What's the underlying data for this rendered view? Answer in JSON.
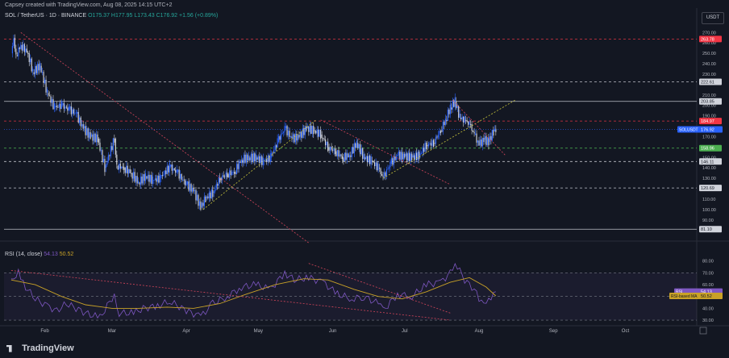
{
  "credit": "Capsey created with TradingView.com, Aug 08, 2025 14:15 UTC+2",
  "currency": "USDT",
  "legend": {
    "symbol": "SOL / TetherUS · 1D · BINANCE",
    "open": "O175.37",
    "high": "H177.95",
    "low": "L173.43",
    "close": "C176.92",
    "change": "+1.56 (+0.89%)"
  },
  "rsi_legend": {
    "label": "RSI (14, close)",
    "value": "54.13",
    "ma_value": "50.52"
  },
  "brand": "TradingView",
  "colors": {
    "background": "#131722",
    "up": "#2962ff",
    "down": "#d1d4dc",
    "rsi": "#7e57c2",
    "rsi_ma": "#c9a227",
    "resistance": "#f23645",
    "support": "#4caf50",
    "trend_yellow": "#c9c53b",
    "trend_red": "#d3455a"
  },
  "chart_data": {
    "type": "candlestick",
    "symbol": "SOL / TetherUS",
    "timeframe": "1D",
    "ylim": [
      72,
      278
    ],
    "price_ticks": [
      270,
      260,
      250,
      240,
      230,
      210,
      200,
      190,
      170,
      150,
      140,
      130,
      110,
      100,
      90,
      80,
      70
    ],
    "x_labels": [
      "Feb",
      "Mar",
      "Apr",
      "May",
      "Jun",
      "Jul",
      "Aug",
      "Sep",
      "Oct"
    ],
    "levels": [
      {
        "price": "263.78",
        "value": 263.78,
        "color": "red"
      },
      {
        "price": "222.61",
        "value": 222.61,
        "color": "white"
      },
      {
        "price": "203.85",
        "value": 203.85,
        "color": "white"
      },
      {
        "price": "184.97",
        "value": 184.97,
        "color": "red"
      },
      {
        "price": "158.96",
        "value": 158.96,
        "color": "green"
      },
      {
        "price": "146.11",
        "value": 146.11,
        "color": "white"
      },
      {
        "price": "120.69",
        "value": 120.69,
        "color": "white"
      },
      {
        "price": "81.10",
        "value": 81.1,
        "color": "white"
      }
    ],
    "last_price": {
      "label": "SOLUSDT",
      "value": 176.92,
      "text": "176.92"
    },
    "close_path": [
      [
        "2025-01-18",
        250
      ],
      [
        "2025-01-19",
        265
      ],
      [
        "2025-01-20",
        248
      ],
      [
        "2025-01-22",
        258
      ],
      [
        "2025-01-25",
        250
      ],
      [
        "2025-01-27",
        232
      ],
      [
        "2025-01-30",
        238
      ],
      [
        "2025-02-02",
        212
      ],
      [
        "2025-02-05",
        198
      ],
      [
        "2025-02-08",
        200
      ],
      [
        "2025-02-11",
        196
      ],
      [
        "2025-02-14",
        192
      ],
      [
        "2025-02-17",
        178
      ],
      [
        "2025-02-20",
        170
      ],
      [
        "2025-02-23",
        168
      ],
      [
        "2025-02-26",
        140
      ],
      [
        "2025-03-02",
        168
      ],
      [
        "2025-03-03",
        142
      ],
      [
        "2025-03-06",
        140
      ],
      [
        "2025-03-09",
        135
      ],
      [
        "2025-03-12",
        126
      ],
      [
        "2025-03-15",
        132
      ],
      [
        "2025-03-18",
        128
      ],
      [
        "2025-03-21",
        130
      ],
      [
        "2025-03-25",
        141
      ],
      [
        "2025-03-28",
        136
      ],
      [
        "2025-04-01",
        124
      ],
      [
        "2025-04-04",
        118
      ],
      [
        "2025-04-07",
        102
      ],
      [
        "2025-04-09",
        111
      ],
      [
        "2025-04-12",
        116
      ],
      [
        "2025-04-15",
        130
      ],
      [
        "2025-04-18",
        134
      ],
      [
        "2025-04-21",
        136
      ],
      [
        "2025-04-24",
        148
      ],
      [
        "2025-04-27",
        150
      ],
      [
        "2025-04-30",
        150
      ],
      [
        "2025-05-03",
        146
      ],
      [
        "2025-05-06",
        150
      ],
      [
        "2025-05-09",
        165
      ],
      [
        "2025-05-12",
        178
      ],
      [
        "2025-05-15",
        168
      ],
      [
        "2025-05-18",
        170
      ],
      [
        "2025-05-21",
        178
      ],
      [
        "2025-05-24",
        176
      ],
      [
        "2025-05-27",
        172
      ],
      [
        "2025-05-30",
        160
      ],
      [
        "2025-06-02",
        156
      ],
      [
        "2025-06-05",
        150
      ],
      [
        "2025-06-08",
        152
      ],
      [
        "2025-06-11",
        164
      ],
      [
        "2025-06-14",
        150
      ],
      [
        "2025-06-17",
        147
      ],
      [
        "2025-06-20",
        140
      ],
      [
        "2025-06-22",
        130
      ],
      [
        "2025-06-25",
        144
      ],
      [
        "2025-06-28",
        152
      ],
      [
        "2025-07-01",
        151
      ],
      [
        "2025-07-04",
        150
      ],
      [
        "2025-07-07",
        152
      ],
      [
        "2025-07-10",
        162
      ],
      [
        "2025-07-13",
        164
      ],
      [
        "2025-07-16",
        176
      ],
      [
        "2025-07-18",
        186
      ],
      [
        "2025-07-20",
        198
      ],
      [
        "2025-07-22",
        204
      ],
      [
        "2025-07-24",
        188
      ],
      [
        "2025-07-26",
        186
      ],
      [
        "2025-07-28",
        182
      ],
      [
        "2025-07-30",
        172
      ],
      [
        "2025-08-01",
        162
      ],
      [
        "2025-08-03",
        167
      ],
      [
        "2025-08-05",
        165
      ],
      [
        "2025-08-07",
        175
      ],
      [
        "2025-08-08",
        176.92
      ]
    ],
    "trendlines": [
      {
        "color": "red",
        "from": [
          "2025-01-22",
          270
        ],
        "to": [
          "2025-05-22",
          68
        ]
      },
      {
        "color": "yellow",
        "from": [
          "2025-04-08",
          100
        ],
        "to": [
          "2025-05-25",
          186
        ]
      },
      {
        "color": "red",
        "from": [
          "2025-05-27",
          186
        ],
        "to": [
          "2025-07-20",
          124
        ]
      },
      {
        "color": "yellow",
        "from": [
          "2025-06-22",
          130
        ],
        "to": [
          "2025-08-16",
          205
        ]
      },
      {
        "color": "red",
        "from": [
          "2025-07-21",
          205
        ],
        "to": [
          "2025-08-12",
          152
        ]
      }
    ],
    "rsi": {
      "length": 14,
      "ylim": [
        28,
        88
      ],
      "ticks": [
        80,
        70,
        60,
        50,
        40,
        30
      ],
      "band": [
        30,
        70
      ],
      "value": 54.13,
      "ma_value": 50.52,
      "value_label": "RSI",
      "ma_label": "RSI-based MA",
      "points": [
        [
          "2025-01-18",
          62
        ],
        [
          "2025-01-21",
          72
        ],
        [
          "2025-01-24",
          58
        ],
        [
          "2025-01-28",
          48
        ],
        [
          "2025-02-02",
          42
        ],
        [
          "2025-02-06",
          38
        ],
        [
          "2025-02-10",
          44
        ],
        [
          "2025-02-14",
          40
        ],
        [
          "2025-02-18",
          36
        ],
        [
          "2025-02-24",
          32
        ],
        [
          "2025-03-02",
          52
        ],
        [
          "2025-03-04",
          36
        ],
        [
          "2025-03-10",
          36
        ],
        [
          "2025-03-14",
          40
        ],
        [
          "2025-03-20",
          42
        ],
        [
          "2025-03-25",
          46
        ],
        [
          "2025-04-01",
          38
        ],
        [
          "2025-04-07",
          33
        ],
        [
          "2025-04-12",
          44
        ],
        [
          "2025-04-18",
          50
        ],
        [
          "2025-04-24",
          58
        ],
        [
          "2025-04-30",
          60
        ],
        [
          "2025-05-06",
          56
        ],
        [
          "2025-05-12",
          70
        ],
        [
          "2025-05-16",
          64
        ],
        [
          "2025-05-22",
          66
        ],
        [
          "2025-05-28",
          62
        ],
        [
          "2025-06-03",
          52
        ],
        [
          "2025-06-09",
          48
        ],
        [
          "2025-06-14",
          50
        ],
        [
          "2025-06-20",
          44
        ],
        [
          "2025-06-22",
          38
        ],
        [
          "2025-06-28",
          52
        ],
        [
          "2025-07-04",
          50
        ],
        [
          "2025-07-10",
          60
        ],
        [
          "2025-07-16",
          62
        ],
        [
          "2025-07-20",
          70
        ],
        [
          "2025-07-22",
          79
        ],
        [
          "2025-07-26",
          64
        ],
        [
          "2025-07-30",
          56
        ],
        [
          "2025-08-02",
          44
        ],
        [
          "2025-08-05",
          48
        ],
        [
          "2025-08-08",
          54.13
        ]
      ],
      "ma_points": [
        [
          "2025-01-18",
          64
        ],
        [
          "2025-01-28",
          60
        ],
        [
          "2025-02-08",
          50
        ],
        [
          "2025-02-18",
          43
        ],
        [
          "2025-03-01",
          40
        ],
        [
          "2025-03-12",
          40
        ],
        [
          "2025-03-24",
          41
        ],
        [
          "2025-04-04",
          40
        ],
        [
          "2025-04-15",
          44
        ],
        [
          "2025-04-26",
          52
        ],
        [
          "2025-05-08",
          60
        ],
        [
          "2025-05-20",
          65
        ],
        [
          "2025-05-30",
          64
        ],
        [
          "2025-06-10",
          56
        ],
        [
          "2025-06-20",
          50
        ],
        [
          "2025-06-30",
          48
        ],
        [
          "2025-07-10",
          54
        ],
        [
          "2025-07-20",
          62
        ],
        [
          "2025-07-28",
          66
        ],
        [
          "2025-08-04",
          58
        ],
        [
          "2025-08-08",
          50.52
        ]
      ],
      "trendlines": [
        {
          "color": "red",
          "from": [
            "2025-01-18",
            72
          ],
          "to": [
            "2025-07-20",
            30
          ]
        },
        {
          "color": "red",
          "from": [
            "2025-05-22",
            78
          ],
          "to": [
            "2025-07-20",
            36
          ]
        }
      ]
    }
  }
}
